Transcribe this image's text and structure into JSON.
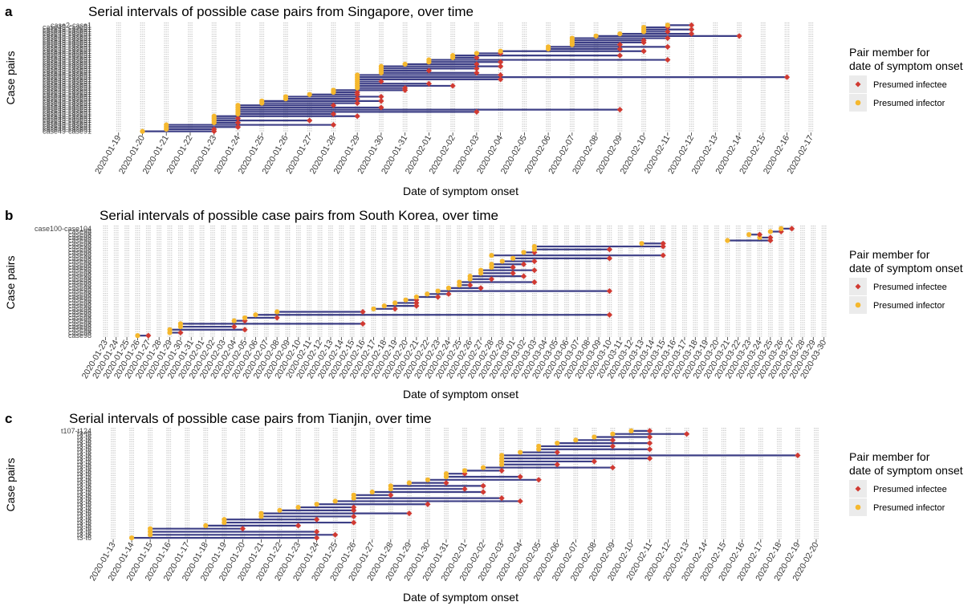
{
  "colors": {
    "infectee": "#d13a32",
    "infector": "#f5b82e",
    "segment": "#3d3f86",
    "stripe": "#cccccc",
    "legend_key_bg": "#ebebeb"
  },
  "legend": {
    "title_line1": "Pair member for",
    "title_line2": "date of symptom onset",
    "infectee_label": "Presumed infectee",
    "infector_label": "Presumed infector"
  },
  "chart_data": [
    {
      "type": "scatter",
      "letter": "a",
      "title": "Serial intervals of possible case pairs from Singapore, over time",
      "xlabel": "Date of symptom onset",
      "ylabel": "Case pairs",
      "xlim": [
        "2020-01-18",
        "2020-02-18"
      ],
      "x_ticks": [
        "2020-01-19",
        "2020-01-20",
        "2020-01-21",
        "2020-01-22",
        "2020-01-23",
        "2020-01-24",
        "2020-01-25",
        "2020-01-26",
        "2020-01-27",
        "2020-01-28",
        "2020-01-29",
        "2020-01-30",
        "2020-01-31",
        "2020-02-01",
        "2020-02-02",
        "2020-02-03",
        "2020-02-04",
        "2020-02-05",
        "2020-02-06",
        "2020-02-07",
        "2020-02-08",
        "2020-02-09",
        "2020-02-10",
        "2020-02-11",
        "2020-02-12",
        "2020-02-13",
        "2020-02-14",
        "2020-02-15",
        "2020-02-16",
        "2020-02-17"
      ],
      "y_labels_visible": [
        "case2-case1",
        "case49-case91"
      ],
      "pairs": [
        [
          "2020-01-20",
          "2020-01-23"
        ],
        [
          "2020-01-21",
          "2020-01-23"
        ],
        [
          "2020-01-21",
          "2020-01-24"
        ],
        [
          "2020-01-21",
          "2020-01-28"
        ],
        [
          "2020-01-23",
          "2020-01-24"
        ],
        [
          "2020-01-23",
          "2020-01-27"
        ],
        [
          "2020-01-23",
          "2020-01-24"
        ],
        [
          "2020-01-23",
          "2020-01-29"
        ],
        [
          "2020-01-24",
          "2020-01-28"
        ],
        [
          "2020-01-24",
          "2020-02-03"
        ],
        [
          "2020-01-24",
          "2020-02-09"
        ],
        [
          "2020-01-24",
          "2020-01-30"
        ],
        [
          "2020-01-24",
          "2020-01-28"
        ],
        [
          "2020-01-25",
          "2020-01-29"
        ],
        [
          "2020-01-25",
          "2020-01-30"
        ],
        [
          "2020-01-26",
          "2020-01-29"
        ],
        [
          "2020-01-26",
          "2020-01-30"
        ],
        [
          "2020-01-27",
          "2020-01-29"
        ],
        [
          "2020-01-28",
          "2020-01-29"
        ],
        [
          "2020-01-28",
          "2020-01-31"
        ],
        [
          "2020-01-29",
          "2020-01-31"
        ],
        [
          "2020-01-29",
          "2020-02-02"
        ],
        [
          "2020-01-29",
          "2020-02-01"
        ],
        [
          "2020-01-29",
          "2020-01-30"
        ],
        [
          "2020-01-29",
          "2020-02-04"
        ],
        [
          "2020-01-29",
          "2020-02-16"
        ],
        [
          "2020-01-29",
          "2020-02-04"
        ],
        [
          "2020-01-30",
          "2020-02-03"
        ],
        [
          "2020-01-30",
          "2020-02-01"
        ],
        [
          "2020-01-30",
          "2020-02-03"
        ],
        [
          "2020-01-30",
          "2020-02-04"
        ],
        [
          "2020-01-31",
          "2020-02-03"
        ],
        [
          "2020-02-01",
          "2020-02-04"
        ],
        [
          "2020-02-01",
          "2020-02-11"
        ],
        [
          "2020-02-02",
          "2020-02-03"
        ],
        [
          "2020-02-02",
          "2020-02-09"
        ],
        [
          "2020-02-03",
          "2020-02-04"
        ],
        [
          "2020-02-04",
          "2020-02-10"
        ],
        [
          "2020-02-06",
          "2020-02-09"
        ],
        [
          "2020-02-06",
          "2020-02-11"
        ],
        [
          "2020-02-07",
          "2020-02-09"
        ],
        [
          "2020-02-07",
          "2020-02-10"
        ],
        [
          "2020-02-07",
          "2020-02-10"
        ],
        [
          "2020-02-07",
          "2020-02-11"
        ],
        [
          "2020-02-08",
          "2020-02-14"
        ],
        [
          "2020-02-09",
          "2020-02-12"
        ],
        [
          "2020-02-10",
          "2020-02-11"
        ],
        [
          "2020-02-10",
          "2020-02-12"
        ],
        [
          "2020-02-10",
          "2020-02-11"
        ],
        [
          "2020-02-11",
          "2020-02-12"
        ]
      ]
    },
    {
      "type": "scatter",
      "letter": "b",
      "title": "Serial intervals of possible case pairs from South Korea, over time",
      "xlabel": "Date of symptom onset",
      "ylabel": "Case pairs",
      "xlim": [
        "2020-01-22",
        "2020-03-31"
      ],
      "x_ticks": [
        "2020-01-23",
        "2020-01-24",
        "2020-01-25",
        "2020-01-26",
        "2020-01-27",
        "2020-01-28",
        "2020-01-29",
        "2020-01-30",
        "2020-01-31",
        "2020-02-01",
        "2020-02-02",
        "2020-02-03",
        "2020-02-04",
        "2020-02-05",
        "2020-02-06",
        "2020-02-07",
        "2020-02-08",
        "2020-02-09",
        "2020-02-10",
        "2020-02-11",
        "2020-02-12",
        "2020-02-13",
        "2020-02-14",
        "2020-02-15",
        "2020-02-16",
        "2020-02-17",
        "2020-02-18",
        "2020-02-19",
        "2020-02-20",
        "2020-02-21",
        "2020-02-22",
        "2020-02-23",
        "2020-02-24",
        "2020-02-25",
        "2020-02-26",
        "2020-02-27",
        "2020-02-28",
        "2020-02-29",
        "2020-03-01",
        "2020-03-02",
        "2020-03-03",
        "2020-03-04",
        "2020-03-05",
        "2020-03-06",
        "2020-03-07",
        "2020-03-08",
        "2020-03-09",
        "2020-03-10",
        "2020-03-11",
        "2020-03-12",
        "2020-03-13",
        "2020-03-14",
        "2020-03-15",
        "2020-03-16",
        "2020-03-17",
        "2020-03-18",
        "2020-03-19",
        "2020-03-20",
        "2020-03-21",
        "2020-03-22",
        "2020-03-23",
        "2020-03-24",
        "2020-03-25",
        "2020-03-26",
        "2020-03-27",
        "2020-03-28",
        "2020-03-29",
        "2020-03-30"
      ],
      "y_labels_visible": [
        "case100-case104",
        "case98"
      ],
      "pairs": [
        [
          "2020-01-26",
          "2020-01-27"
        ],
        [
          "2020-01-29",
          "2020-01-30"
        ],
        [
          "2020-01-29",
          "2020-02-05"
        ],
        [
          "2020-01-30",
          "2020-02-04"
        ],
        [
          "2020-01-30",
          "2020-02-16"
        ],
        [
          "2020-02-04",
          "2020-02-05"
        ],
        [
          "2020-02-05",
          "2020-02-08"
        ],
        [
          "2020-02-06",
          "2020-03-10"
        ],
        [
          "2020-02-08",
          "2020-02-16"
        ],
        [
          "2020-02-17",
          "2020-02-19"
        ],
        [
          "2020-02-18",
          "2020-02-21"
        ],
        [
          "2020-02-19",
          "2020-02-21"
        ],
        [
          "2020-02-20",
          "2020-02-21"
        ],
        [
          "2020-02-21",
          "2020-02-23"
        ],
        [
          "2020-02-22",
          "2020-02-24"
        ],
        [
          "2020-02-23",
          "2020-03-10"
        ],
        [
          "2020-02-24",
          "2020-02-27"
        ],
        [
          "2020-02-25",
          "2020-02-26"
        ],
        [
          "2020-02-25",
          "2020-03-03"
        ],
        [
          "2020-02-26",
          "2020-02-28"
        ],
        [
          "2020-02-26",
          "2020-03-02"
        ],
        [
          "2020-02-27",
          "2020-03-01"
        ],
        [
          "2020-02-27",
          "2020-03-03"
        ],
        [
          "2020-02-28",
          "2020-03-01"
        ],
        [
          "2020-02-28",
          "2020-03-02"
        ],
        [
          "2020-02-29",
          "2020-03-03"
        ],
        [
          "2020-03-01",
          "2020-03-10"
        ],
        [
          "2020-02-28",
          "2020-03-15"
        ],
        [
          "2020-03-02",
          "2020-03-03"
        ],
        [
          "2020-03-03",
          "2020-03-10"
        ],
        [
          "2020-03-03",
          "2020-03-15"
        ],
        [
          "2020-03-13",
          "2020-03-15"
        ],
        [
          "2020-03-21",
          "2020-03-25"
        ],
        [
          "2020-03-24",
          "2020-03-25"
        ],
        [
          "2020-03-23",
          "2020-03-24"
        ],
        [
          "2020-03-25",
          "2020-03-26"
        ],
        [
          "2020-03-26",
          "2020-03-27"
        ]
      ]
    },
    {
      "type": "scatter",
      "letter": "c",
      "title": "Serial intervals of possible case pairs from Tianjin, over time",
      "xlabel": "Date of symptom onset",
      "ylabel": "Case pairs",
      "xlim": [
        "2020-01-12",
        "2020-02-21"
      ],
      "x_ticks": [
        "2020-01-13",
        "2020-01-14",
        "2020-01-15",
        "2020-01-16",
        "2020-01-17",
        "2020-01-18",
        "2020-01-19",
        "2020-01-20",
        "2020-01-21",
        "2020-01-22",
        "2020-01-23",
        "2020-01-24",
        "2020-01-25",
        "2020-01-26",
        "2020-01-27",
        "2020-01-28",
        "2020-01-29",
        "2020-01-30",
        "2020-01-31",
        "2020-02-01",
        "2020-02-02",
        "2020-02-03",
        "2020-02-04",
        "2020-02-05",
        "2020-02-06",
        "2020-02-07",
        "2020-02-08",
        "2020-02-09",
        "2020-02-10",
        "2020-02-11",
        "2020-02-12",
        "2020-02-13",
        "2020-02-14",
        "2020-02-15",
        "2020-02-16",
        "2020-02-17",
        "2020-02-18",
        "2020-02-19",
        "2020-02-20"
      ],
      "y_labels_visible": [
        "t107-t124",
        "t3-t6"
      ],
      "pairs": [
        [
          "2020-01-14",
          "2020-01-24"
        ],
        [
          "2020-01-15",
          "2020-01-25"
        ],
        [
          "2020-01-15",
          "2020-01-24"
        ],
        [
          "2020-01-15",
          "2020-01-20"
        ],
        [
          "2020-01-18",
          "2020-01-23"
        ],
        [
          "2020-01-19",
          "2020-01-26"
        ],
        [
          "2020-01-19",
          "2020-01-24"
        ],
        [
          "2020-01-21",
          "2020-01-26"
        ],
        [
          "2020-01-21",
          "2020-01-29"
        ],
        [
          "2020-01-22",
          "2020-01-26"
        ],
        [
          "2020-01-23",
          "2020-01-26"
        ],
        [
          "2020-01-24",
          "2020-01-30"
        ],
        [
          "2020-01-25",
          "2020-02-04"
        ],
        [
          "2020-01-26",
          "2020-02-03"
        ],
        [
          "2020-01-26",
          "2020-01-28"
        ],
        [
          "2020-01-27",
          "2020-02-02"
        ],
        [
          "2020-01-28",
          "2020-02-01"
        ],
        [
          "2020-01-28",
          "2020-02-02"
        ],
        [
          "2020-01-29",
          "2020-01-31"
        ],
        [
          "2020-01-30",
          "2020-02-05"
        ],
        [
          "2020-01-31",
          "2020-02-04"
        ],
        [
          "2020-01-31",
          "2020-02-01"
        ],
        [
          "2020-02-01",
          "2020-02-03"
        ],
        [
          "2020-02-02",
          "2020-02-09"
        ],
        [
          "2020-02-03",
          "2020-02-06"
        ],
        [
          "2020-02-03",
          "2020-02-08"
        ],
        [
          "2020-02-03",
          "2020-02-11"
        ],
        [
          "2020-02-03",
          "2020-02-19"
        ],
        [
          "2020-02-04",
          "2020-02-06"
        ],
        [
          "2020-02-05",
          "2020-02-11"
        ],
        [
          "2020-02-05",
          "2020-02-09"
        ],
        [
          "2020-02-06",
          "2020-02-11"
        ],
        [
          "2020-02-07",
          "2020-02-09"
        ],
        [
          "2020-02-08",
          "2020-02-11"
        ],
        [
          "2020-02-09",
          "2020-02-13"
        ],
        [
          "2020-02-10",
          "2020-02-11"
        ]
      ]
    }
  ]
}
